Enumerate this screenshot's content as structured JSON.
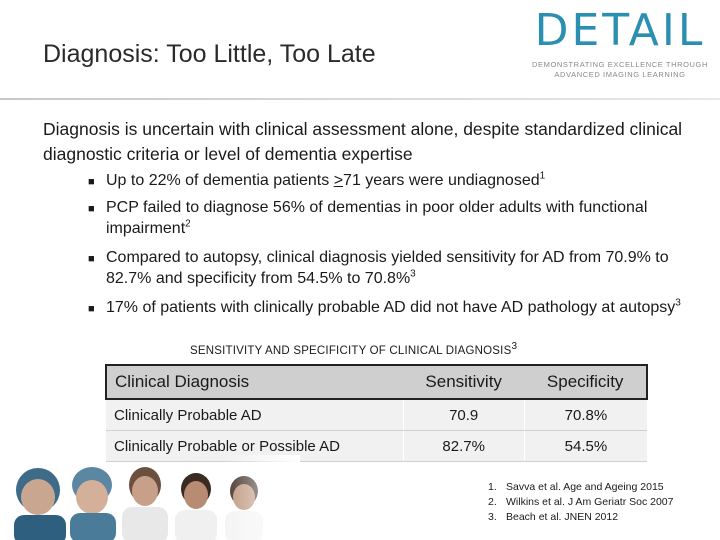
{
  "slide": {
    "title": "Diagnosis: Too Little, Too Late",
    "intro": "Diagnosis is uncertain with clinical assessment alone, despite standardized clinical diagnostic criteria or level of dementia expertise"
  },
  "logo": {
    "word": "DETAIL",
    "tagline_line1": "DEMONSTRATING EXCELLENCE THROUGH",
    "tagline_line2": "ADVANCED IMAGING LEARNING",
    "color": "#2a8fb0"
  },
  "bullets": [
    {
      "text_before": "Up to 22% of dementia patients ",
      "underlined": ">",
      "text_after": "71 years were undiagnosed",
      "ref": "1"
    },
    {
      "text": "PCP failed to diagnose 56% of dementias in poor older adults with functional impairment",
      "ref": "2"
    },
    {
      "text": "Compared to autopsy, clinical diagnosis yielded sensitivity for AD from 70.9% to 82.7% and specificity from 54.5% to 70.8%",
      "ref": "3"
    },
    {
      "text": "17% of patients with clinically probable AD did not have AD pathology at autopsy",
      "ref": "3"
    }
  ],
  "table": {
    "caption": "SENSITIVITY AND SPECIFICITY OF CLINICAL DIAGNOSIS",
    "caption_ref": "3",
    "headers": [
      "Clinical Diagnosis",
      "Sensitivity",
      "Specificity"
    ],
    "rows": [
      [
        "Clinically Probable AD",
        "70.9",
        "70.8%"
      ],
      [
        "Clinically Probable or Possible AD",
        "82.7%",
        "54.5%"
      ]
    ]
  },
  "references": [
    {
      "num": "1.",
      "text": "Savva et al. Age and Ageing 2015"
    },
    {
      "num": "2.",
      "text": "Wilkins et al. J Am Geriatr Soc 2007"
    },
    {
      "num": "3.",
      "text": "Beach et al. JNEN 2012"
    }
  ]
}
